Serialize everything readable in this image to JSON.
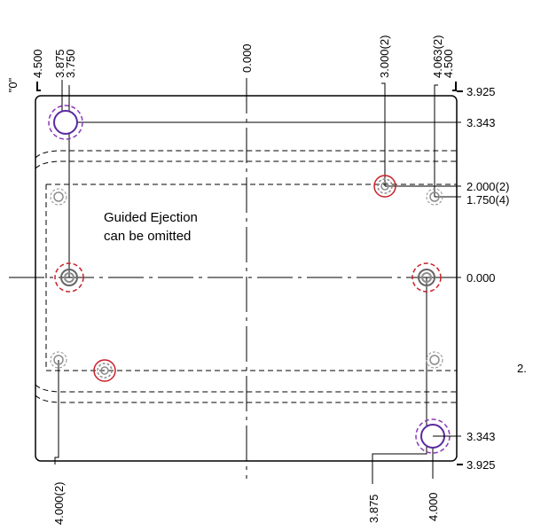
{
  "drawing": {
    "datum_label": "\"0\"",
    "note": [
      "Guided Ejection",
      "can be omitted"
    ],
    "right_edge_text": "2.",
    "top_dims": {
      "left_outer": "4.500",
      "left_hole_a": "3.875",
      "left_hole_b": "3.750",
      "center": "0.000",
      "right_hole_a": "3.000(2)",
      "right_hole_b": "4.063(2)",
      "right_outer": "4.500"
    },
    "right_dims": {
      "top_edge": "3.925",
      "upper_hole": "3.343",
      "small_hole_a": "2.000(2)",
      "small_hole_b": "1.750(4)",
      "center": "0.000",
      "lower_hole": "3.343",
      "bottom_edge": "3.925"
    },
    "bottom_dims": {
      "left_hole": "4.000(2)",
      "right_hole_a": "3.875",
      "right_hole_b": "4.000"
    },
    "colors": {
      "line": "#000000",
      "dashed": "#000000",
      "hole_gray": "#8c8c8c",
      "ring_red": "#c8202a",
      "ring_purple": "#5a2aa0",
      "ring_purple_dash": "#8a3ab8"
    }
  }
}
